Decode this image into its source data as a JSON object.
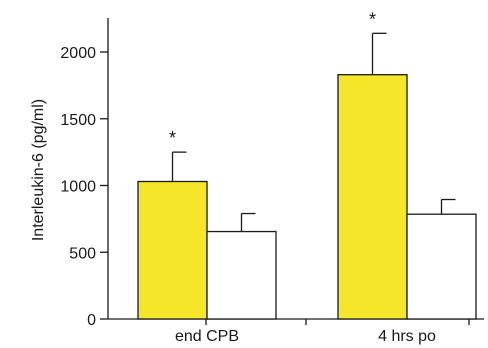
{
  "chart_data": {
    "type": "bar",
    "categories": [
      "end CPB",
      "4 hrs po"
    ],
    "ylabel": "Interleukin-6 (pg/ml)",
    "xlabel": "",
    "ylim": [
      0,
      2200
    ],
    "yticks": [
      0,
      500,
      1000,
      1500,
      2000
    ],
    "grid": false,
    "legend": "none",
    "series": [
      {
        "color": "#f5e62a",
        "values": [
          1030,
          1830
        ],
        "errors": [
          220,
          310
        ],
        "annotations": [
          "*",
          "*"
        ]
      },
      {
        "color": "#ffffff",
        "values": [
          655,
          785
        ],
        "errors": [
          135,
          110
        ],
        "annotations": [
          "",
          ""
        ]
      }
    ]
  }
}
